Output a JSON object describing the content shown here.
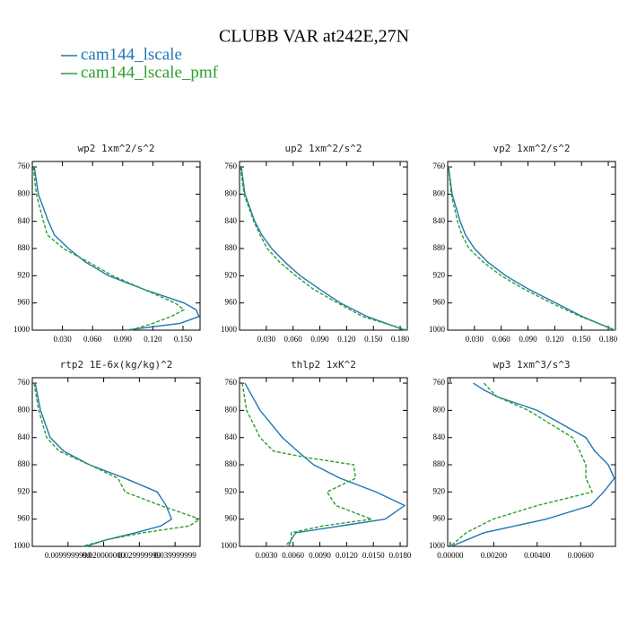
{
  "title": "CLUBB VAR at242E,27N",
  "legend": [
    {
      "name": "cam144_lscale",
      "color": "#1f77b4"
    },
    {
      "name": "cam144_lscale_pmf",
      "color": "#2ca02c"
    }
  ],
  "chart_data": [
    {
      "type": "line",
      "title": "wp2  1xm^2/s^2",
      "y": [
        760,
        800,
        840,
        860,
        880,
        900,
        920,
        940,
        960,
        970,
        980,
        990,
        1000
      ],
      "series": [
        {
          "values": [
            0.002,
            0.006,
            0.016,
            0.022,
            0.036,
            0.053,
            0.076,
            0.111,
            0.151,
            0.163,
            0.166,
            0.147,
            0.093
          ]
        },
        {
          "values": [
            0.001,
            0.004,
            0.011,
            0.015,
            0.031,
            0.056,
            0.08,
            0.111,
            0.142,
            0.151,
            0.138,
            0.12,
            0.098
          ]
        }
      ],
      "xlim": [
        0,
        0.167
      ],
      "ylim": [
        1000,
        752
      ],
      "xticks": [
        {
          "value": 0.03,
          "label": "0.030"
        },
        {
          "value": 0.06,
          "label": "0.060"
        },
        {
          "value": 0.09,
          "label": "0.090"
        },
        {
          "value": 0.12,
          "label": "0.120"
        },
        {
          "value": 0.15,
          "label": "0.150"
        }
      ],
      "yticks": [
        760,
        800,
        840,
        880,
        920,
        960,
        1000
      ]
    },
    {
      "type": "line",
      "title": "up2  1xm^2/s^2",
      "y": [
        760,
        800,
        840,
        860,
        880,
        900,
        920,
        940,
        960,
        980,
        1000
      ],
      "series": [
        {
          "values": [
            0.002,
            0.006,
            0.017,
            0.025,
            0.036,
            0.051,
            0.068,
            0.09,
            0.113,
            0.143,
            0.185
          ]
        },
        {
          "values": [
            0.001,
            0.005,
            0.016,
            0.023,
            0.031,
            0.045,
            0.063,
            0.083,
            0.11,
            0.138,
            0.188
          ]
        }
      ],
      "xlim": [
        0,
        0.188
      ],
      "ylim": [
        1000,
        752
      ],
      "xticks": [
        {
          "value": 0.03,
          "label": "0.030"
        },
        {
          "value": 0.06,
          "label": "0.060"
        },
        {
          "value": 0.09,
          "label": "0.090"
        },
        {
          "value": 0.12,
          "label": "0.120"
        },
        {
          "value": 0.15,
          "label": "0.150"
        },
        {
          "value": 0.18,
          "label": "0.180"
        }
      ],
      "yticks": [
        760,
        800,
        840,
        880,
        920,
        960,
        1000
      ]
    },
    {
      "type": "line",
      "title": "vp2  1xm^2/s^2",
      "y": [
        760,
        800,
        840,
        860,
        880,
        900,
        920,
        940,
        960,
        980,
        1000
      ],
      "series": [
        {
          "values": [
            0.001,
            0.005,
            0.014,
            0.02,
            0.03,
            0.045,
            0.065,
            0.091,
            0.121,
            0.151,
            0.187
          ]
        },
        {
          "values": [
            0.001,
            0.004,
            0.011,
            0.016,
            0.024,
            0.04,
            0.06,
            0.086,
            0.116,
            0.149,
            0.188
          ]
        }
      ],
      "xlim": [
        0,
        0.188
      ],
      "ylim": [
        1000,
        752
      ],
      "xticks": [
        {
          "value": 0.03,
          "label": "0.030"
        },
        {
          "value": 0.06,
          "label": "0.060"
        },
        {
          "value": 0.09,
          "label": "0.090"
        },
        {
          "value": 0.12,
          "label": "0.120"
        },
        {
          "value": 0.15,
          "label": "0.150"
        },
        {
          "value": 0.18,
          "label": "0.180"
        }
      ],
      "yticks": [
        760,
        800,
        840,
        880,
        920,
        960,
        1000
      ]
    },
    {
      "type": "line",
      "title": "rtp2  1E-6x(kg/kg)^2",
      "y": [
        760,
        800,
        840,
        860,
        880,
        900,
        920,
        940,
        960,
        970,
        980,
        990,
        1000
      ],
      "series": [
        {
          "values": [
            0.0008,
            0.0023,
            0.005,
            0.0088,
            0.016,
            0.026,
            0.035,
            0.0375,
            0.039,
            0.036,
            0.029,
            0.021,
            0.015
          ]
        },
        {
          "values": [
            0.0005,
            0.0018,
            0.004,
            0.0075,
            0.016,
            0.024,
            0.026,
            0.036,
            0.047,
            0.044,
            0.031,
            0.021,
            0.014
          ]
        }
      ],
      "xlim": [
        0,
        0.047
      ],
      "ylim": [
        1000,
        752
      ],
      "xticks": [
        {
          "value": 0.009999999,
          "label": "0.0099999990"
        },
        {
          "value": 0.02,
          "label": "0.020000000"
        },
        {
          "value": 0.029999999,
          "label": "0.029999999"
        },
        {
          "value": 0.039999999,
          "label": "0.039999999"
        }
      ],
      "yticks": [
        760,
        800,
        840,
        880,
        920,
        960,
        1000
      ]
    },
    {
      "type": "line",
      "title": "thlp2  1xK^2",
      "y": [
        760,
        800,
        840,
        860,
        870,
        880,
        900,
        920,
        940,
        960,
        970,
        980,
        990,
        1000
      ],
      "series": [
        {
          "values": [
            0.0006,
            0.0023,
            0.0048,
            0.0065,
            0.0074,
            0.0083,
            0.0113,
            0.0153,
            0.0185,
            0.0163,
            0.0113,
            0.0063,
            0.0058,
            0.0055
          ]
        },
        {
          "values": [
            0.0003,
            0.0008,
            0.0023,
            0.0038,
            0.0078,
            0.0128,
            0.013,
            0.0098,
            0.0108,
            0.0148,
            0.0093,
            0.0058,
            0.0058,
            0.0051
          ]
        }
      ],
      "xlim": [
        0,
        0.0188
      ],
      "ylim": [
        1000,
        752
      ],
      "xticks": [
        {
          "value": 0.003,
          "label": "0.0030"
        },
        {
          "value": 0.006,
          "label": "0.0060"
        },
        {
          "value": 0.009,
          "label": "0.0090"
        },
        {
          "value": 0.012,
          "label": "0.0120"
        },
        {
          "value": 0.015,
          "label": "0.0150"
        },
        {
          "value": 0.018,
          "label": "0.0180"
        }
      ],
      "yticks": [
        760,
        800,
        840,
        880,
        920,
        960,
        1000
      ]
    },
    {
      "type": "line",
      "title": "wp3  1xm^3/s^3",
      "y": [
        760,
        770,
        780,
        800,
        840,
        860,
        880,
        900,
        920,
        940,
        960,
        980,
        1000
      ],
      "series": [
        {
          "values": [
            0.00106,
            0.00155,
            0.00216,
            0.004,
            0.00624,
            0.00665,
            0.00727,
            0.00755,
            0.00706,
            0.00645,
            0.00441,
            0.00155,
            4e-05
          ]
        },
        {
          "values": [
            0.00155,
            0.00184,
            0.00216,
            0.00359,
            0.00563,
            0.00596,
            0.00624,
            0.00624,
            0.00653,
            0.004,
            0.00196,
            0.00073,
            0
          ]
        }
      ],
      "xlim": [
        -0.00012,
        0.0076
      ],
      "ylim": [
        1000,
        752
      ],
      "xticks": [
        {
          "value": 0,
          "label": "0.00000"
        },
        {
          "value": 0.002,
          "label": "0.00200"
        },
        {
          "value": 0.004,
          "label": "0.00400"
        },
        {
          "value": 0.006,
          "label": "0.00600"
        }
      ],
      "yticks": [
        760,
        800,
        840,
        880,
        920,
        960,
        1000
      ]
    }
  ]
}
